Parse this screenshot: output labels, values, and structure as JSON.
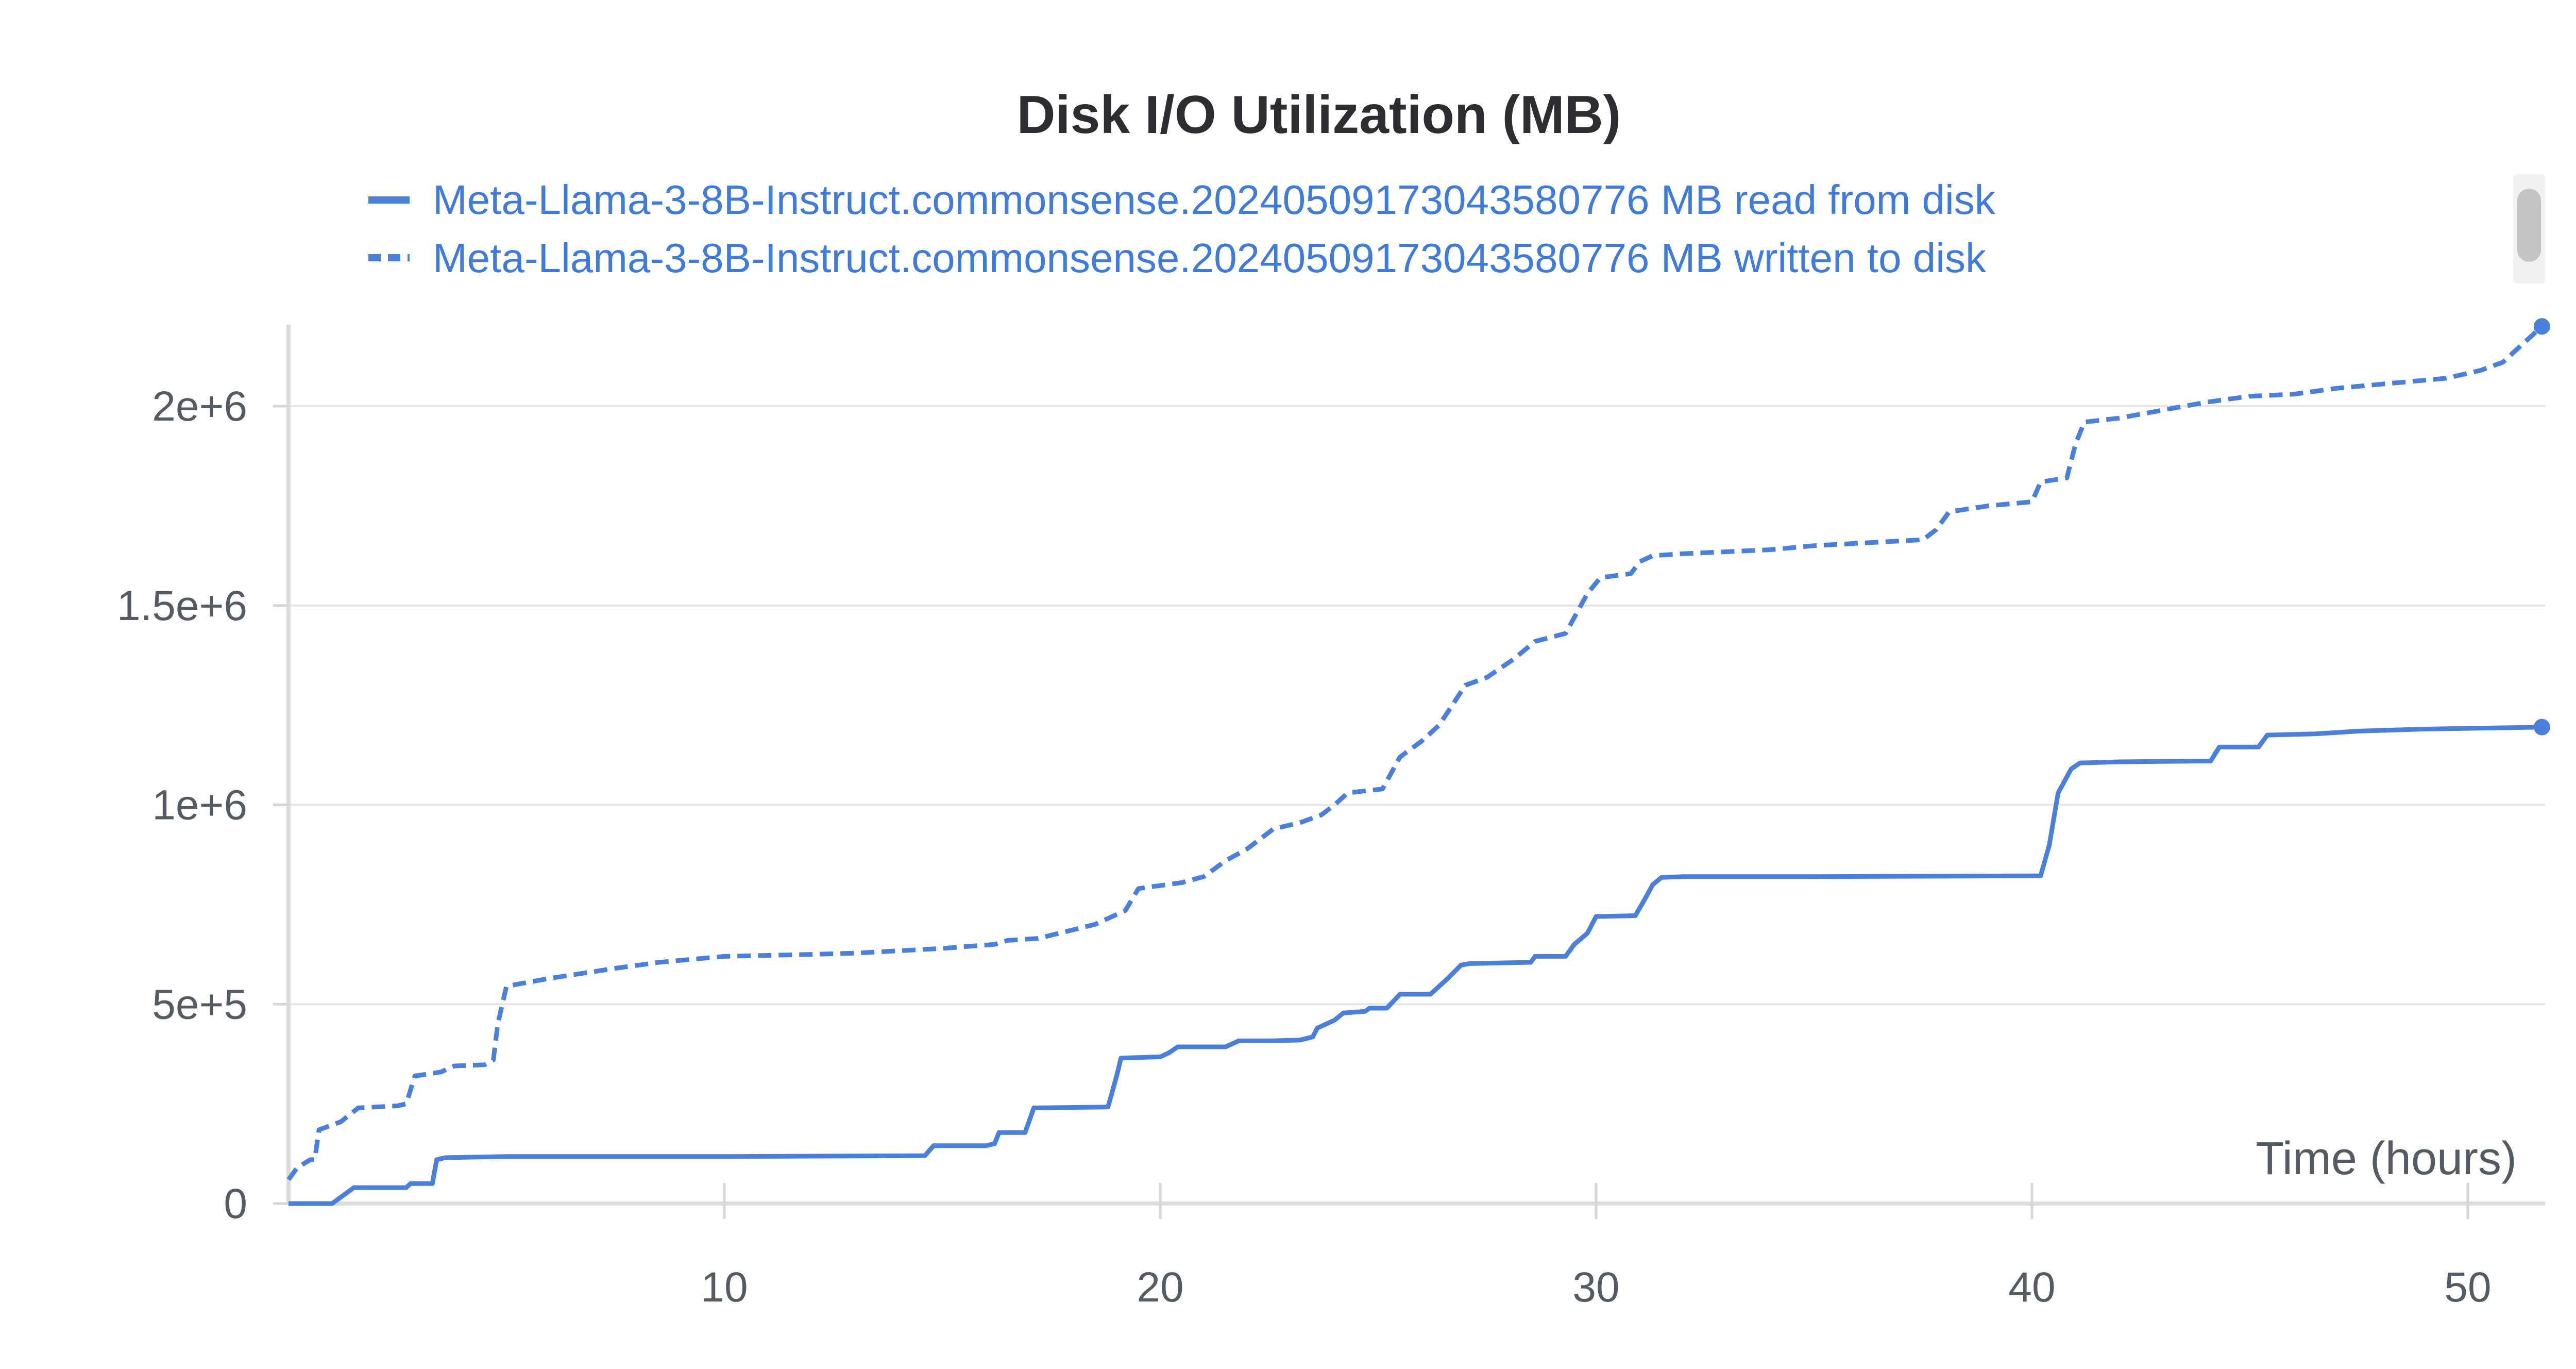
{
  "chart_data": {
    "type": "line",
    "title": "Disk I/O Utilization (MB)",
    "xlabel": "Time (hours)",
    "ylabel": "",
    "xlim": [
      0,
      51.7
    ],
    "ylim": [
      0,
      2200000
    ],
    "x_ticks": [
      10,
      20,
      30,
      40,
      50
    ],
    "x_tick_labels": [
      "10",
      "20",
      "30",
      "40",
      "50"
    ],
    "y_ticks": [
      0,
      500000,
      1000000,
      1500000,
      2000000
    ],
    "y_tick_labels": [
      "0",
      "5e+5",
      "1e+6",
      "1.5e+6",
      "2e+6"
    ],
    "grid": true,
    "legend_position": "top",
    "series": [
      {
        "name": "Meta-Llama-3-8B-Instruct.commonsense.20240509173043580776 MB read from disk",
        "color": "#4a7fdb",
        "dash": "solid",
        "points": [
          [
            0,
            0
          ],
          [
            1.0,
            0
          ],
          [
            1.5,
            40000
          ],
          [
            2.7,
            40000
          ],
          [
            2.8,
            50000
          ],
          [
            3.3,
            50000
          ],
          [
            3.4,
            110000
          ],
          [
            3.6,
            115000
          ],
          [
            5,
            118000
          ],
          [
            10,
            118000
          ],
          [
            14.6,
            120000
          ],
          [
            14.8,
            145000
          ],
          [
            16.0,
            145000
          ],
          [
            16.2,
            150000
          ],
          [
            16.3,
            178000
          ],
          [
            16.9,
            178000
          ],
          [
            17.1,
            240000
          ],
          [
            18.8,
            242000
          ],
          [
            19.0,
            320000
          ],
          [
            19.1,
            365000
          ],
          [
            20.0,
            368000
          ],
          [
            20.2,
            378000
          ],
          [
            20.4,
            393000
          ],
          [
            21.5,
            393000
          ],
          [
            21.8,
            408000
          ],
          [
            22.5,
            408000
          ],
          [
            23.2,
            410000
          ],
          [
            23.5,
            418000
          ],
          [
            23.6,
            440000
          ],
          [
            24.0,
            460000
          ],
          [
            24.2,
            478000
          ],
          [
            24.7,
            482000
          ],
          [
            24.8,
            490000
          ],
          [
            25.2,
            490000
          ],
          [
            25.5,
            525000
          ],
          [
            26.2,
            525000
          ],
          [
            26.6,
            565000
          ],
          [
            26.9,
            598000
          ],
          [
            27.1,
            602000
          ],
          [
            28.5,
            605000
          ],
          [
            28.6,
            620000
          ],
          [
            29.3,
            620000
          ],
          [
            29.5,
            650000
          ],
          [
            29.8,
            678000
          ],
          [
            30.0,
            720000
          ],
          [
            30.9,
            722000
          ],
          [
            31.1,
            760000
          ],
          [
            31.3,
            800000
          ],
          [
            31.5,
            818000
          ],
          [
            32,
            820000
          ],
          [
            35,
            820000
          ],
          [
            40.2,
            822000
          ],
          [
            40.4,
            900000
          ],
          [
            40.6,
            1030000
          ],
          [
            40.9,
            1090000
          ],
          [
            41.1,
            1105000
          ],
          [
            42,
            1108000
          ],
          [
            44.1,
            1110000
          ],
          [
            44.3,
            1145000
          ],
          [
            45.2,
            1145000
          ],
          [
            45.4,
            1175000
          ],
          [
            46.5,
            1178000
          ],
          [
            47.5,
            1185000
          ],
          [
            49,
            1190000
          ],
          [
            51.7,
            1195000
          ]
        ]
      },
      {
        "name": "Meta-Llama-3-8B-Instruct.commonsense.20240509173043580776 MB written to disk",
        "color": "#4a7fdb",
        "dash": "dashed",
        "points": [
          [
            0,
            60000
          ],
          [
            0.2,
            90000
          ],
          [
            0.5,
            110000
          ],
          [
            0.6,
            110000
          ],
          [
            0.7,
            185000
          ],
          [
            1.2,
            205000
          ],
          [
            1.6,
            240000
          ],
          [
            2.5,
            245000
          ],
          [
            2.7,
            250000
          ],
          [
            2.9,
            320000
          ],
          [
            3.5,
            330000
          ],
          [
            3.8,
            345000
          ],
          [
            4.5,
            348000
          ],
          [
            4.7,
            360000
          ],
          [
            4.8,
            450000
          ],
          [
            5.0,
            545000
          ],
          [
            6,
            565000
          ],
          [
            7.5,
            590000
          ],
          [
            8.5,
            605000
          ],
          [
            10,
            620000
          ],
          [
            12,
            625000
          ],
          [
            13,
            628000
          ],
          [
            15,
            640000
          ],
          [
            16.2,
            650000
          ],
          [
            16.5,
            660000
          ],
          [
            17.2,
            665000
          ],
          [
            18.5,
            700000
          ],
          [
            19.2,
            735000
          ],
          [
            19.5,
            790000
          ],
          [
            20.5,
            805000
          ],
          [
            21.0,
            820000
          ],
          [
            21.5,
            860000
          ],
          [
            22.0,
            890000
          ],
          [
            22.6,
            940000
          ],
          [
            23.2,
            955000
          ],
          [
            23.7,
            975000
          ],
          [
            24.0,
            1000000
          ],
          [
            24.3,
            1030000
          ],
          [
            25.1,
            1040000
          ],
          [
            25.5,
            1120000
          ],
          [
            26.0,
            1160000
          ],
          [
            26.4,
            1200000
          ],
          [
            27.0,
            1300000
          ],
          [
            27.5,
            1320000
          ],
          [
            28.1,
            1365000
          ],
          [
            28.6,
            1410000
          ],
          [
            29.3,
            1430000
          ],
          [
            29.8,
            1530000
          ],
          [
            30.1,
            1570000
          ],
          [
            30.8,
            1580000
          ],
          [
            31.0,
            1610000
          ],
          [
            31.3,
            1625000
          ],
          [
            32,
            1630000
          ],
          [
            34,
            1640000
          ],
          [
            35,
            1650000
          ],
          [
            37.5,
            1665000
          ],
          [
            37.8,
            1690000
          ],
          [
            38.1,
            1735000
          ],
          [
            39,
            1750000
          ],
          [
            40.0,
            1760000
          ],
          [
            40.2,
            1810000
          ],
          [
            40.8,
            1820000
          ],
          [
            41.0,
            1905000
          ],
          [
            41.2,
            1960000
          ],
          [
            42,
            1970000
          ],
          [
            43,
            1990000
          ],
          [
            44,
            2010000
          ],
          [
            45,
            2025000
          ],
          [
            46,
            2030000
          ],
          [
            47,
            2045000
          ],
          [
            48.5,
            2060000
          ],
          [
            49.5,
            2070000
          ],
          [
            50.3,
            2090000
          ],
          [
            50.8,
            2110000
          ],
          [
            51.2,
            2150000
          ],
          [
            51.7,
            2200000
          ]
        ]
      }
    ]
  }
}
